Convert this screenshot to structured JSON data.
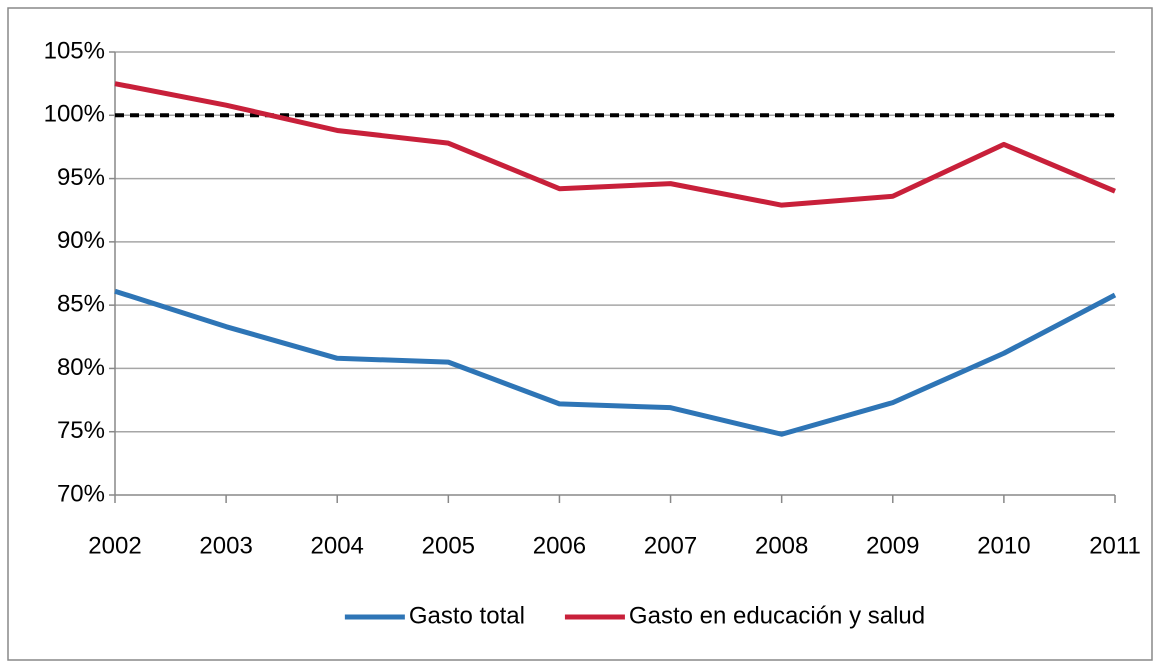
{
  "chart_data": {
    "type": "line",
    "x": [
      2002,
      2003,
      2004,
      2005,
      2006,
      2007,
      2008,
      2009,
      2010,
      2011
    ],
    "xlim": [
      2002,
      2011
    ],
    "xticks": [
      2002,
      2003,
      2004,
      2005,
      2006,
      2007,
      2008,
      2009,
      2010,
      2011
    ],
    "ylim": [
      70,
      105
    ],
    "yticks": [
      {
        "value": 70,
        "label": "70%"
      },
      {
        "value": 75,
        "label": "75%"
      },
      {
        "value": 80,
        "label": "80%"
      },
      {
        "value": 85,
        "label": "85%"
      },
      {
        "value": 90,
        "label": "90%"
      },
      {
        "value": 95,
        "label": "95%"
      },
      {
        "value": 100,
        "label": "100%"
      },
      {
        "value": 105,
        "label": "105%"
      }
    ],
    "grid": true,
    "reference_line": 100,
    "legend": "bottom",
    "series": [
      {
        "name": "Gasto total",
        "color": "#2e75b6",
        "values": [
          86.1,
          83.3,
          80.8,
          80.5,
          77.2,
          76.9,
          74.8,
          77.3,
          81.2,
          85.8
        ]
      },
      {
        "name": "Gasto en educación y salud",
        "color": "#c8203a",
        "values": [
          102.5,
          100.8,
          98.8,
          97.8,
          94.2,
          94.6,
          92.9,
          93.6,
          97.7,
          94.0
        ]
      }
    ]
  }
}
